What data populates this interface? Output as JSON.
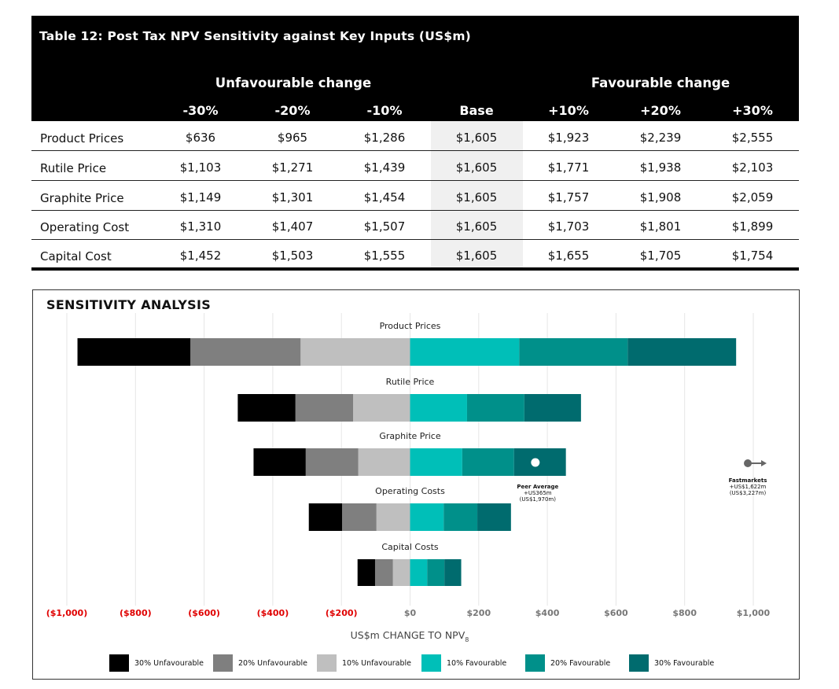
{
  "table": {
    "title": "Table 12: Post Tax NPV Sensitivity against Key Inputs (US$m)",
    "group_unfavourable": "Unfavourable change",
    "group_favourable": "Favourable change",
    "columns": [
      "-30%",
      "-20%",
      "-10%",
      "Base",
      "+10%",
      "+20%",
      "+30%"
    ],
    "rows": [
      {
        "label": "Product Prices",
        "values": [
          "$636",
          "$965",
          "$1,286",
          "$1,605",
          "$1,923",
          "$2,239",
          "$2,555"
        ]
      },
      {
        "label": "Rutile Price",
        "values": [
          "$1,103",
          "$1,271",
          "$1,439",
          "$1,605",
          "$1,771",
          "$1,938",
          "$2,103"
        ]
      },
      {
        "label": "Graphite Price",
        "values": [
          "$1,149",
          "$1,301",
          "$1,454",
          "$1,605",
          "$1,757",
          "$1,908",
          "$2,059"
        ]
      },
      {
        "label": "Operating Cost",
        "values": [
          "$1,310",
          "$1,407",
          "$1,507",
          "$1,605",
          "$1,703",
          "$1,801",
          "$1,899"
        ]
      },
      {
        "label": "Capital Cost",
        "values": [
          "$1,452",
          "$1,503",
          "$1,555",
          "$1,605",
          "$1,655",
          "$1,705",
          "$1,754"
        ]
      }
    ]
  },
  "chart_data": {
    "type": "bar",
    "orientation": "horizontal-tornado",
    "title": "SENSITIVITY ANALYSIS",
    "xlabel_main": "US$m CHANGE TO NPV",
    "xlabel_sub": "8",
    "xlim": [
      -1000,
      1000
    ],
    "xticks": [
      {
        "value": -1000,
        "label": "($1,000)",
        "negative": true
      },
      {
        "value": -800,
        "label": "($800)",
        "negative": true
      },
      {
        "value": -600,
        "label": "($600)",
        "negative": true
      },
      {
        "value": -400,
        "label": "($400)",
        "negative": true
      },
      {
        "value": -200,
        "label": "($200)",
        "negative": true
      },
      {
        "value": 0,
        "label": "$0",
        "negative": false
      },
      {
        "value": 200,
        "label": "$200",
        "negative": false
      },
      {
        "value": 400,
        "label": "$400",
        "negative": false
      },
      {
        "value": 600,
        "label": "$600",
        "negative": false
      },
      {
        "value": 800,
        "label": "$800",
        "negative": false
      },
      {
        "value": 1000,
        "label": "$1,000",
        "negative": false
      }
    ],
    "categories": [
      "Product Prices",
      "Rutile Price",
      "Graphite Price",
      "Operating Costs",
      "Capital Costs"
    ],
    "series": [
      {
        "name": "30% Unfavourable",
        "color": "#000000",
        "values": [
          -969,
          -502,
          -456,
          -295,
          -153
        ]
      },
      {
        "name": "20% Unfavourable",
        "color": "#7f7f7f",
        "values": [
          -640,
          -334,
          -304,
          -198,
          -102
        ]
      },
      {
        "name": "10% Unfavourable",
        "color": "#bfbfbf",
        "values": [
          -319,
          -166,
          -151,
          -98,
          -50
        ]
      },
      {
        "name": "10% Favourable",
        "color": "#00bfb8",
        "values": [
          318,
          166,
          152,
          98,
          50
        ]
      },
      {
        "name": "20% Favourable",
        "color": "#00908a",
        "values": [
          634,
          333,
          303,
          196,
          100
        ]
      },
      {
        "name": "30% Favourable",
        "color": "#006b6e",
        "values": [
          950,
          498,
          454,
          294,
          149
        ]
      }
    ],
    "annotations": {
      "peer_average": {
        "value": 365,
        "lines": [
          "Peer Average",
          "+US365m",
          "(US$1,970m)"
        ]
      },
      "fastmarkets": {
        "value": 1622,
        "lines": [
          "Fastmarkets",
          "+US$1,622m",
          "(US$3,227m)"
        ]
      }
    },
    "neg_color": "#e00000"
  }
}
